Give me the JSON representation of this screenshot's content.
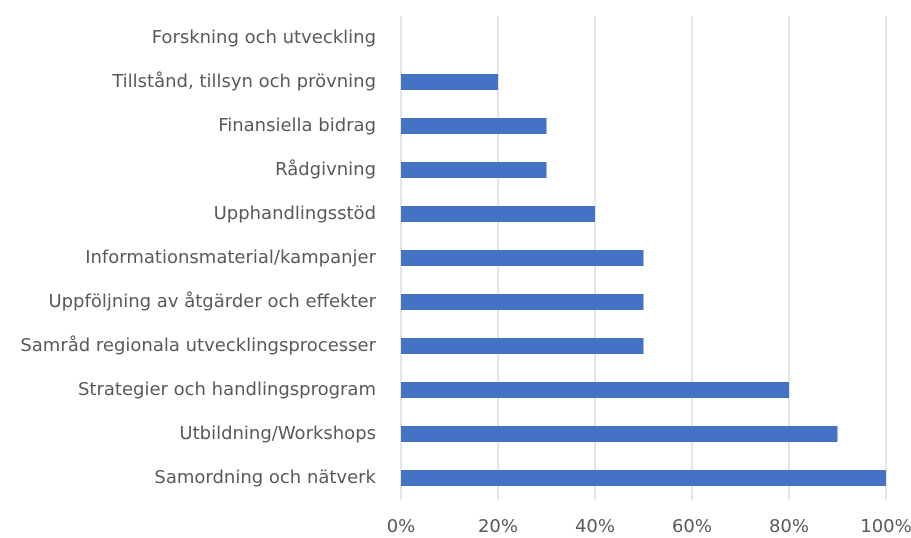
{
  "chart_data": {
    "type": "barh",
    "categories": [
      "Forskning och utveckling",
      "Tillstånd, tillsyn och prövning",
      "Finansiella bidrag",
      "Rådgivning",
      "Upphandlingsstöd",
      "Informationsmaterial/kampanjer",
      "Uppföljning av åtgärder och effekter",
      "Samråd regionala utvecklingsprocesser",
      "Strategier och handlingsprogram",
      "Utbildning/Workshops",
      "Samordning och nätverk"
    ],
    "values": [
      0,
      20,
      30,
      30,
      40,
      50,
      50,
      50,
      80,
      90,
      100
    ],
    "color": "#4472c4",
    "xlim": [
      0,
      100
    ],
    "xticks": [
      {
        "value": 0,
        "label": "0%"
      },
      {
        "value": 20,
        "label": "20%"
      },
      {
        "value": 40,
        "label": "40%"
      },
      {
        "value": 60,
        "label": "60%"
      },
      {
        "value": 80,
        "label": "80%"
      },
      {
        "value": 100,
        "label": "100%"
      }
    ],
    "grid": true
  }
}
